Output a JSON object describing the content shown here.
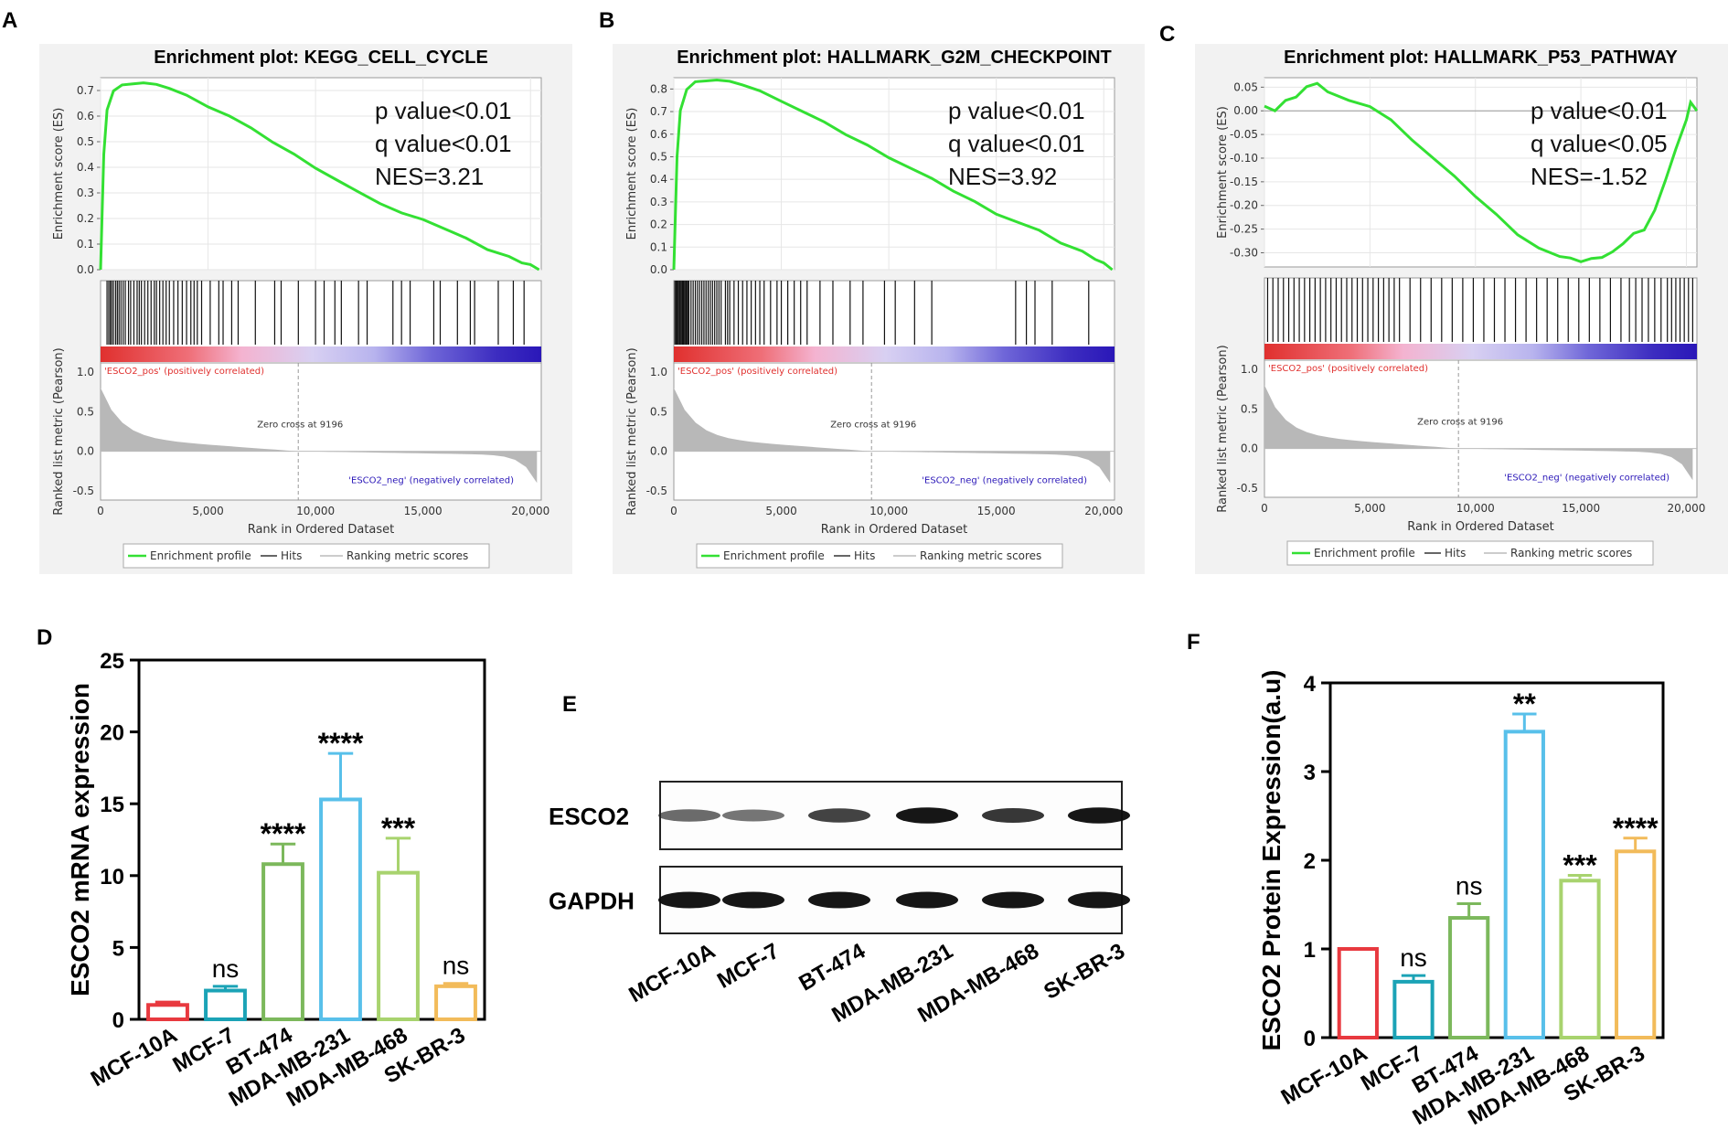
{
  "panel_letters": [
    "A",
    "B",
    "C",
    "D",
    "E",
    "F"
  ],
  "gsea_common": {
    "y_label_top": "Enrichment score (ES)",
    "y_label_bottom": "Ranked list metric (Pearson)",
    "x_label": "Rank in Ordered Dataset",
    "x_ticks": [
      0,
      5000,
      10000,
      15000,
      20000
    ],
    "x_tick_labels": [
      "0",
      "5,000",
      "10,000",
      "15,000",
      "20,000"
    ],
    "metric_ticks": [
      "1.0",
      "0.5",
      "0.0",
      "-0.5"
    ],
    "pos_label": "'ESCO2_pos' (positively correlated)",
    "neg_label": "'ESCO2_neg' (negatively correlated)",
    "zero_cross": "Zero cross at 9196",
    "legend": [
      "Enrichment profile",
      "Hits",
      "Ranking metric scores"
    ],
    "colors": {
      "profile": "#33e033",
      "pos": "#e0302e",
      "neg": "#2a17b8",
      "metric": "#b8b8b8"
    }
  },
  "chart_data": [
    {
      "panel": "A",
      "type": "line",
      "title": "Enrichment plot: KEGG_CELL_CYCLE",
      "stats": [
        "p value<0.01",
        "q value<0.01",
        "NES=3.21"
      ],
      "ylim": [
        0,
        0.75
      ],
      "y_ticks": [
        "0.0",
        "0.1",
        "0.2",
        "0.3",
        "0.4",
        "0.5",
        "0.6",
        "0.7"
      ],
      "x": [
        0,
        150,
        300,
        600,
        1000,
        1500,
        2000,
        2600,
        3200,
        4000,
        5000,
        6000,
        7000,
        8000,
        9000,
        10000,
        11000,
        12000,
        13000,
        14000,
        15000,
        16000,
        17000,
        18000,
        19000,
        19600,
        20000,
        20400
      ],
      "y": [
        0,
        0.45,
        0.62,
        0.7,
        0.72,
        0.73,
        0.73,
        0.72,
        0.71,
        0.68,
        0.64,
        0.6,
        0.55,
        0.5,
        0.45,
        0.4,
        0.35,
        0.3,
        0.26,
        0.22,
        0.2,
        0.16,
        0.12,
        0.08,
        0.05,
        0.03,
        0.02,
        0.0
      ],
      "hits": [
        300,
        380,
        450,
        520,
        600,
        700,
        780,
        860,
        950,
        1050,
        1150,
        1300,
        1400,
        1550,
        1700,
        1800,
        1900,
        2050,
        2200,
        2350,
        2500,
        2600,
        2750,
        2900,
        3050,
        3200,
        3400,
        3600,
        3800,
        4000,
        4200,
        4350,
        4500,
        4700,
        5100,
        5500,
        5700,
        6100,
        6400,
        7200,
        8100,
        8400,
        9200,
        10000,
        10400,
        10900,
        11200,
        12000,
        12400,
        13600,
        14000,
        14400,
        15500,
        15800,
        16600,
        17200,
        17400,
        18500,
        19200,
        19700
      ]
    },
    {
      "panel": "B",
      "type": "line",
      "title": "Enrichment plot: HALLMARK_G2M_CHECKPOINT",
      "stats": [
        "p value<0.01",
        "q value<0.01",
        "NES=3.92"
      ],
      "ylim": [
        0,
        0.85
      ],
      "y_ticks": [
        "0.0",
        "0.1",
        "0.2",
        "0.3",
        "0.4",
        "0.5",
        "0.6",
        "0.7",
        "0.8"
      ],
      "x": [
        0,
        150,
        300,
        600,
        1000,
        1500,
        2000,
        2600,
        3200,
        4000,
        5000,
        6000,
        7000,
        8000,
        9000,
        10000,
        11000,
        12000,
        13000,
        14000,
        15000,
        16000,
        17000,
        18000,
        19000,
        19600,
        20000,
        20400
      ],
      "y": [
        0,
        0.5,
        0.7,
        0.8,
        0.83,
        0.84,
        0.84,
        0.83,
        0.82,
        0.79,
        0.75,
        0.7,
        0.65,
        0.6,
        0.55,
        0.5,
        0.45,
        0.4,
        0.35,
        0.3,
        0.25,
        0.21,
        0.17,
        0.12,
        0.08,
        0.05,
        0.03,
        0.0
      ],
      "hits": [
        50,
        100,
        150,
        200,
        250,
        300,
        350,
        400,
        450,
        500,
        550,
        600,
        650,
        700,
        800,
        900,
        1000,
        1100,
        1200,
        1300,
        1400,
        1500,
        1600,
        1700,
        1800,
        1900,
        2000,
        2100,
        2200,
        2400,
        2500,
        2600,
        2800,
        3000,
        3200,
        3400,
        3600,
        3800,
        4000,
        4200,
        4500,
        4800,
        5000,
        5300,
        5600,
        5900,
        6200,
        6800,
        7400,
        8200,
        8800,
        9800,
        10300,
        11200,
        12000,
        15900,
        16400,
        16800,
        17600,
        19300
      ]
    },
    {
      "panel": "C",
      "type": "line",
      "title": "Enrichment plot: HALLMARK_P53_PATHWAY",
      "stats": [
        "p value<0.01",
        "q value<0.05",
        "NES=-1.52"
      ],
      "ylim": [
        -0.33,
        0.07
      ],
      "y_ticks": [
        "0.05",
        "0.00",
        "-0.05",
        "-0.10",
        "-0.15",
        "-0.20",
        "-0.25",
        "-0.30"
      ],
      "y_tick_values": [
        0.05,
        0,
        -0.05,
        -0.1,
        -0.15,
        -0.2,
        -0.25,
        -0.3
      ],
      "x": [
        0,
        500,
        1000,
        1500,
        2000,
        2500,
        3000,
        4000,
        5000,
        6000,
        7000,
        8000,
        9000,
        10000,
        11000,
        12000,
        13000,
        14000,
        14500,
        15000,
        15500,
        16000,
        16500,
        17000,
        17500,
        18000,
        18500,
        19000,
        19500,
        20000,
        20200,
        20500
      ],
      "y": [
        0.01,
        0.0,
        0.02,
        0.03,
        0.05,
        0.06,
        0.04,
        0.02,
        0.01,
        -0.02,
        -0.06,
        -0.1,
        -0.14,
        -0.18,
        -0.22,
        -0.26,
        -0.29,
        -0.31,
        -0.31,
        -0.32,
        -0.31,
        -0.31,
        -0.3,
        -0.28,
        -0.26,
        -0.25,
        -0.21,
        -0.15,
        -0.08,
        -0.02,
        0.02,
        0.0
      ],
      "hits": [
        150,
        400,
        650,
        900,
        1150,
        1400,
        1650,
        1900,
        2150,
        2400,
        2650,
        2900,
        3150,
        3400,
        3650,
        3900,
        4150,
        4400,
        4650,
        4900,
        5150,
        5400,
        5650,
        5900,
        6150,
        6400,
        6900,
        7400,
        7900,
        8400,
        8900,
        9400,
        9900,
        10400,
        10900,
        11400,
        11900,
        12400,
        12900,
        13400,
        13900,
        14400,
        14900,
        15400,
        15900,
        16400,
        16900,
        17300,
        17600,
        17900,
        18200,
        18500,
        18800,
        19100,
        19300,
        19500,
        19700,
        19900,
        20100,
        20300
      ]
    },
    {
      "panel": "D",
      "type": "bar",
      "ylabel": "ESCO2 mRNA expression",
      "categories": [
        "MCF-10A",
        "MCF-7",
        "BT-474",
        "MDA-MB-231",
        "MDA-MB-468",
        "SK-BR-3"
      ],
      "values": [
        1.0,
        2.0,
        10.8,
        15.3,
        10.2,
        2.3
      ],
      "errors": [
        0.2,
        0.3,
        1.4,
        3.2,
        2.4,
        0.2
      ],
      "significance": [
        "",
        "ns",
        "****",
        "****",
        "***",
        "ns"
      ],
      "ylim": [
        0,
        25
      ],
      "y_ticks": [
        0,
        5,
        10,
        15,
        20,
        25
      ],
      "colors": [
        "#e8393f",
        "#1ba3b6",
        "#7cb85c",
        "#58c0ea",
        "#a8d36e",
        "#f2bb5a"
      ]
    },
    {
      "panel": "F",
      "type": "bar",
      "ylabel": "ESCO2 Protein Expression(a.u)",
      "categories": [
        "MCF-10A",
        "MCF-7",
        "BT-474",
        "MDA-MB-231",
        "MDA-MB-468",
        "SK-BR-3"
      ],
      "values": [
        1.0,
        0.63,
        1.35,
        3.45,
        1.77,
        2.1
      ],
      "errors": [
        0,
        0.07,
        0.16,
        0.2,
        0.06,
        0.15
      ],
      "significance": [
        "",
        "ns",
        "ns",
        "**",
        "***",
        "****"
      ],
      "ylim": [
        0,
        4
      ],
      "y_ticks": [
        0,
        1,
        2,
        3,
        4
      ],
      "colors": [
        "#e8393f",
        "#1ba3b6",
        "#7cb85c",
        "#58c0ea",
        "#a8d36e",
        "#f2bb5a"
      ]
    }
  ],
  "western_blot": {
    "rows": [
      {
        "label": "ESCO2",
        "intensities": [
          0.55,
          0.5,
          0.75,
          0.95,
          0.8,
          0.95
        ]
      },
      {
        "label": "GAPDH",
        "intensities": [
          0.95,
          0.95,
          0.95,
          0.95,
          0.95,
          0.95
        ]
      }
    ],
    "lanes": [
      "MCF-10A",
      "MCF-7",
      "BT-474",
      "MDA-MB-231",
      "MDA-MB-468",
      "SK-BR-3"
    ]
  }
}
